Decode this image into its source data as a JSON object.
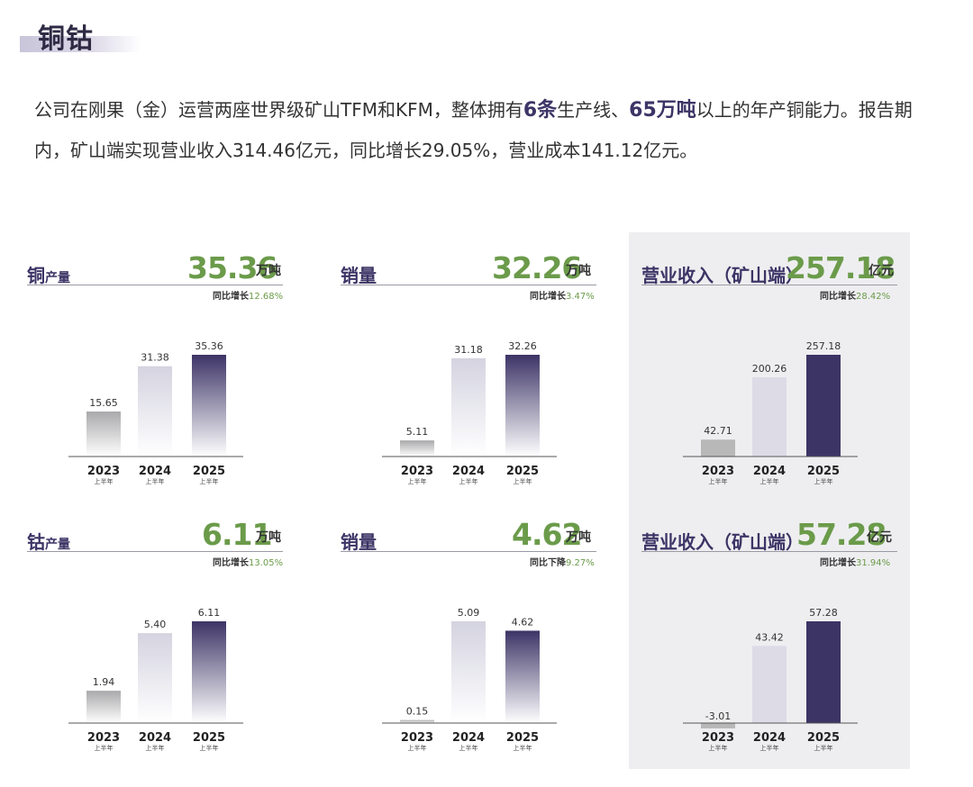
{
  "section": {
    "title": "铜钴"
  },
  "intro": {
    "p1": "公司在刚果（金）运营两座世界级矿山TFM和KFM，整体拥有",
    "hl1": "6条",
    "p2": "生产线、",
    "hl2": "65万吨",
    "p3": "以上的年产铜能力。报告期内，矿山端实现营业收入314.46亿元，同比增长29.05%，营业成本141.12亿元。"
  },
  "colors": {
    "accent_green": "#6b9b4a",
    "title_purple": "#3d3466",
    "bar_2023": "#b8b8b8",
    "bar_2024": "#dcdbe6",
    "bar_2025": "#3d3466",
    "panel_bg": "#eeeef0"
  },
  "chart_data": [
    {
      "type": "bar",
      "label": "铜",
      "label_sub": "产量",
      "big_value": "35.36",
      "unit": "万吨",
      "yoy_label": "同比增长",
      "yoy_value": "12.68%",
      "categories": [
        "2023",
        "2024",
        "2025"
      ],
      "category_sub": "上半年",
      "values": [
        15.65,
        31.38,
        35.36
      ],
      "value_labels": [
        "15.65",
        "31.38",
        "35.36"
      ],
      "style": "gradient"
    },
    {
      "type": "bar",
      "label": "销量",
      "label_sub": "",
      "big_value": "32.26",
      "unit": "万吨",
      "yoy_label": "同比增长",
      "yoy_value": "3.47%",
      "categories": [
        "2023",
        "2024",
        "2025"
      ],
      "category_sub": "上半年",
      "values": [
        5.11,
        31.18,
        32.26
      ],
      "value_labels": [
        "5.11",
        "31.18",
        "32.26"
      ],
      "style": "gradient"
    },
    {
      "type": "bar",
      "label": "营业收入（矿山端）",
      "label_sub": "",
      "big_value": "257.18",
      "unit": "亿元",
      "yoy_label": "同比增长",
      "yoy_value": "28.42%",
      "categories": [
        "2023",
        "2024",
        "2025"
      ],
      "category_sub": "上半年",
      "values": [
        42.71,
        200.26,
        257.18
      ],
      "value_labels": [
        "42.71",
        "200.26",
        "257.18"
      ],
      "style": "solid"
    },
    {
      "type": "bar",
      "label": "钴",
      "label_sub": "产量",
      "big_value": "6.11",
      "unit": "万吨",
      "yoy_label": "同比增长",
      "yoy_value": "13.05%",
      "categories": [
        "2023",
        "2024",
        "2025"
      ],
      "category_sub": "上半年",
      "values": [
        1.94,
        5.4,
        6.11
      ],
      "value_labels": [
        "1.94",
        "5.40",
        "6.11"
      ],
      "style": "gradient"
    },
    {
      "type": "bar",
      "label": "销量",
      "label_sub": "",
      "big_value": "4.62",
      "unit": "万吨",
      "yoy_label": "同比下降",
      "yoy_value": "9.27%",
      "categories": [
        "2023",
        "2024",
        "2025"
      ],
      "category_sub": "上半年",
      "values": [
        0.15,
        5.09,
        4.62
      ],
      "value_labels": [
        "0.15",
        "5.09",
        "4.62"
      ],
      "style": "gradient"
    },
    {
      "type": "bar",
      "label": "营业收入（矿山端）",
      "label_sub": "",
      "big_value": "57.28",
      "unit": "亿元",
      "yoy_label": "同比增长",
      "yoy_value": "31.94%",
      "categories": [
        "2023",
        "2024",
        "2025"
      ],
      "category_sub": "上半年",
      "values": [
        -3.01,
        43.42,
        57.28
      ],
      "value_labels": [
        "-3.01",
        "43.42",
        "57.28"
      ],
      "style": "solid"
    }
  ]
}
